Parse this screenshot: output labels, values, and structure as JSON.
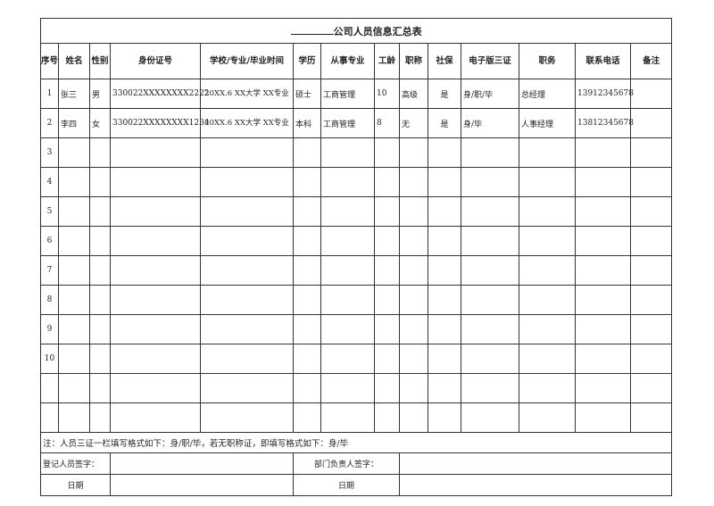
{
  "title": {
    "blank": "",
    "text": "公司人员信息汇总表"
  },
  "columns": [
    "序号",
    "姓名",
    "性别",
    "身份证号",
    "学校/专业/毕业时间",
    "学历",
    "从事专业",
    "工龄",
    "职称",
    "社保",
    "电子版三证",
    "职务",
    "联系电话",
    "备注"
  ],
  "rows": [
    [
      "1",
      "张三",
      "男",
      "330022XXXXXXXX2222",
      "20XX.6 XX大学 XX专业",
      "硕士",
      "工商管理",
      "10",
      "高级",
      "是",
      "身/职/毕",
      "总经理",
      "13912345678",
      ""
    ],
    [
      "2",
      "李四",
      "女",
      "330022XXXXXXXX1234",
      "20XX.6 XX大学 XX专业",
      "本科",
      "工商管理",
      "8",
      "无",
      "是",
      "身/毕",
      "人事经理",
      "13812345678",
      ""
    ],
    [
      "3",
      "",
      "",
      "",
      "",
      "",
      "",
      "",
      "",
      "",
      "",
      "",
      "",
      ""
    ],
    [
      "4",
      "",
      "",
      "",
      "",
      "",
      "",
      "",
      "",
      "",
      "",
      "",
      "",
      ""
    ],
    [
      "5",
      "",
      "",
      "",
      "",
      "",
      "",
      "",
      "",
      "",
      "",
      "",
      "",
      ""
    ],
    [
      "6",
      "",
      "",
      "",
      "",
      "",
      "",
      "",
      "",
      "",
      "",
      "",
      "",
      ""
    ],
    [
      "7",
      "",
      "",
      "",
      "",
      "",
      "",
      "",
      "",
      "",
      "",
      "",
      "",
      ""
    ],
    [
      "8",
      "",
      "",
      "",
      "",
      "",
      "",
      "",
      "",
      "",
      "",
      "",
      "",
      ""
    ],
    [
      "9",
      "",
      "",
      "",
      "",
      "",
      "",
      "",
      "",
      "",
      "",
      "",
      "",
      ""
    ],
    [
      "10",
      "",
      "",
      "",
      "",
      "",
      "",
      "",
      "",
      "",
      "",
      "",
      "",
      ""
    ],
    [
      "",
      "",
      "",
      "",
      "",
      "",
      "",
      "",
      "",
      "",
      "",
      "",
      "",
      ""
    ],
    [
      "",
      "",
      "",
      "",
      "",
      "",
      "",
      "",
      "",
      "",
      "",
      "",
      "",
      ""
    ]
  ],
  "note": "注：人员三证一栏填写格式如下：身/职/毕，若无职称证，即填写格式如下：身/毕",
  "signatures": {
    "registrar_label": "登记人员签字：",
    "dept_head_label": "部门负责人签字：",
    "date_label_1": "日期",
    "date_label_2": "日期"
  }
}
